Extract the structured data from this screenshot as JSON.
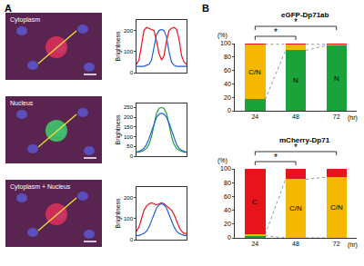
{
  "panel_labels": [
    "A",
    "B"
  ],
  "images": [
    {
      "label": "Cytoplasm"
    },
    {
      "label": "Nucleus"
    },
    {
      "label": "Cytoplasm + Nucleus"
    }
  ],
  "chart_data": [
    {
      "type": "line",
      "y_label": "Brightness",
      "x": [
        0,
        1,
        2,
        3,
        4,
        5,
        6,
        7,
        8,
        9,
        10,
        11,
        12,
        13,
        14,
        15,
        16,
        17,
        18,
        19,
        20
      ],
      "xlim": [
        0,
        20
      ],
      "ylim": [
        0,
        250
      ],
      "yticks": [
        0,
        100,
        200
      ],
      "tick_labels": "y",
      "grid": false,
      "series": [
        {
          "color": "#e8141b",
          "values": [
            40,
            60,
            130,
            200,
            215,
            210,
            205,
            200,
            150,
            90,
            60,
            80,
            150,
            200,
            210,
            215,
            205,
            160,
            80,
            50,
            40
          ]
        },
        {
          "color": "#1f5fd6",
          "values": [
            30,
            30,
            30,
            30,
            35,
            40,
            60,
            120,
            180,
            200,
            205,
            200,
            170,
            100,
            50,
            35,
            30,
            30,
            30,
            30,
            30
          ]
        }
      ]
    },
    {
      "type": "line",
      "y_label": "Brightness",
      "x": [
        0,
        1,
        2,
        3,
        4,
        5,
        6,
        7,
        8,
        9,
        10,
        11,
        12,
        13,
        14,
        15,
        16,
        17,
        18,
        19,
        20
      ],
      "xlim": [
        0,
        20
      ],
      "ylim": [
        0,
        270
      ],
      "yticks": [
        0,
        50,
        100,
        150,
        200,
        250
      ],
      "tick_labels": "y",
      "grid": false,
      "series": [
        {
          "color": "#21a339",
          "values": [
            20,
            20,
            25,
            30,
            40,
            60,
            100,
            160,
            220,
            245,
            250,
            245,
            220,
            160,
            100,
            60,
            40,
            30,
            25,
            20,
            20
          ]
        },
        {
          "color": "#1f5fd6",
          "values": [
            20,
            25,
            30,
            40,
            60,
            90,
            130,
            170,
            200,
            215,
            220,
            215,
            200,
            170,
            130,
            90,
            60,
            40,
            30,
            25,
            20
          ]
        }
      ]
    },
    {
      "type": "line",
      "y_label": "Brightness",
      "x": [
        0,
        1,
        2,
        3,
        4,
        5,
        6,
        7,
        8,
        9,
        10,
        11,
        12,
        13,
        14,
        15,
        16,
        17,
        18,
        19,
        20
      ],
      "xlim": [
        0,
        20
      ],
      "ylim": [
        0,
        250
      ],
      "yticks": [
        0,
        100,
        200
      ],
      "tick_labels": "y",
      "grid": false,
      "series": [
        {
          "color": "#e8141b",
          "values": [
            40,
            60,
            100,
            140,
            160,
            170,
            175,
            170,
            165,
            170,
            175,
            170,
            160,
            150,
            140,
            120,
            90,
            60,
            40,
            30,
            30
          ]
        },
        {
          "color": "#1f5fd6",
          "values": [
            20,
            20,
            25,
            30,
            40,
            60,
            90,
            120,
            150,
            165,
            170,
            165,
            150,
            120,
            90,
            60,
            40,
            30,
            25,
            20,
            20
          ]
        }
      ]
    },
    {
      "type": "bar",
      "stacked": true,
      "title": "eGFP-Dp71ab",
      "categories": [
        "24",
        "48",
        "72"
      ],
      "x_label": "(hr)",
      "y_label": "(%)",
      "ylim": [
        0,
        100
      ],
      "yticks": [
        0,
        20,
        40,
        60,
        80,
        100
      ],
      "grid": false,
      "series": [
        {
          "name": "N",
          "color": "#1aa33a",
          "values": [
            17,
            90,
            97
          ]
        },
        {
          "name": "C/N",
          "color": "#f5b800",
          "values": [
            82,
            9,
            2
          ]
        },
        {
          "name": "C",
          "color": "#e8141b",
          "values": [
            1,
            1,
            1
          ]
        }
      ],
      "segment_labels": [
        {
          "category": "24",
          "series": "C/N"
        },
        {
          "category": "48",
          "series": "N"
        },
        {
          "category": "72",
          "series": "N"
        }
      ],
      "significance": [
        {
          "from": "24",
          "to": "48",
          "text": "*"
        },
        {
          "from": "24",
          "to": "72",
          "text": "*"
        }
      ]
    },
    {
      "type": "bar",
      "stacked": true,
      "title": "mCherry-Dp71",
      "categories": [
        "24",
        "48",
        "72"
      ],
      "x_label": "(hr)",
      "y_label": "(%)",
      "ylim": [
        0,
        100
      ],
      "yticks": [
        0,
        20,
        40,
        60,
        80,
        100
      ],
      "grid": false,
      "series": [
        {
          "name": "N",
          "color": "#1aa33a",
          "values": [
            3,
            0,
            0
          ]
        },
        {
          "name": "C/N",
          "color": "#f5b800",
          "values": [
            2,
            85,
            88
          ]
        },
        {
          "name": "C",
          "color": "#e8141b",
          "values": [
            95,
            15,
            12
          ]
        }
      ],
      "segment_labels": [
        {
          "category": "24",
          "series": "C"
        },
        {
          "category": "48",
          "series": "C/N"
        },
        {
          "category": "72",
          "series": "C/N"
        }
      ],
      "significance": [
        {
          "from": "24",
          "to": "48",
          "text": "*"
        },
        {
          "from": "24",
          "to": "72",
          "text": "*"
        }
      ]
    }
  ]
}
